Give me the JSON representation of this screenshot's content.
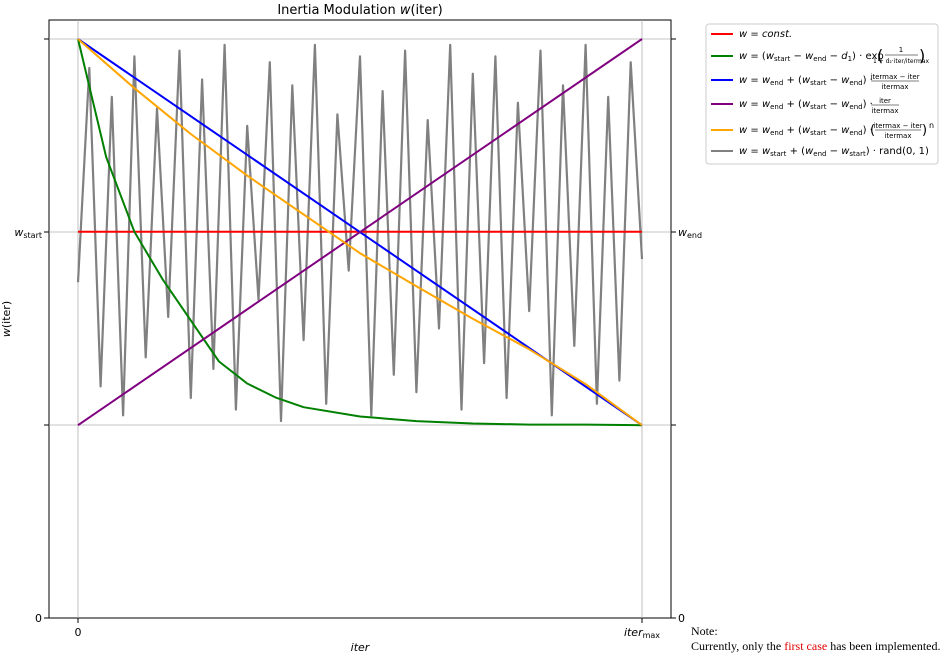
{
  "chart_data": {
    "type": "line",
    "title": "Inertia Modulation w(iter)",
    "xlabel": "iter",
    "ylabel": "w(iter)",
    "x_ticks": [
      "0",
      "iter_max"
    ],
    "y_ticks_left": [
      "0",
      "w_start"
    ],
    "y_ticks_right": [
      "0",
      "w_end"
    ],
    "xlim": [
      0,
      1
    ],
    "ylim": [
      0,
      1
    ],
    "grid": true,
    "legend_position": "outside-top-right",
    "series": [
      {
        "name": "w = const.",
        "color": "#ff0000",
        "x": [
          0,
          1
        ],
        "y": [
          0.667,
          0.667
        ]
      },
      {
        "name": "w = (w_start − w_end − d1) · exp(1 / (1 + d2·iter/itermax))",
        "color": "#008000",
        "x": [
          0,
          0.05,
          0.1,
          0.15,
          0.2,
          0.25,
          0.3,
          0.35,
          0.4,
          0.5,
          0.6,
          0.7,
          0.8,
          0.9,
          1.0
        ],
        "y": [
          1.0,
          0.796,
          0.667,
          0.585,
          0.514,
          0.443,
          0.405,
          0.381,
          0.364,
          0.348,
          0.34,
          0.336,
          0.334,
          0.334,
          0.333
        ]
      },
      {
        "name": "w = w_end + (w_start − w_end) · (itermax − iter)/itermax",
        "color": "#0000ff",
        "x": [
          0,
          1
        ],
        "y": [
          1.0,
          0.333
        ]
      },
      {
        "name": "w = w_end + (w_start − w_end) · iter/itermax",
        "color": "#800080",
        "x": [
          0,
          1
        ],
        "y": [
          0.333,
          1.0
        ]
      },
      {
        "name": "w = w_end + (w_start − w_end) · ((itermax − iter)/itermax)^n",
        "color": "#ffa500",
        "x": [
          0,
          0.1,
          0.2,
          0.3,
          0.4,
          0.5,
          0.6,
          0.7,
          0.8,
          0.9,
          1.0
        ],
        "y": [
          1.0,
          0.915,
          0.836,
          0.764,
          0.697,
          0.63,
          0.573,
          0.517,
          0.464,
          0.404,
          0.333
        ]
      },
      {
        "name": "w = w_start + (w_end − w_start) · rand(0, 1)",
        "color": "#808080",
        "x": [
          0,
          0.02,
          0.04,
          0.06,
          0.08,
          0.1,
          0.12,
          0.14,
          0.16,
          0.18,
          0.2,
          0.22,
          0.24,
          0.26,
          0.28,
          0.3,
          0.32,
          0.34,
          0.36,
          0.38,
          0.4,
          0.42,
          0.44,
          0.46,
          0.48,
          0.5,
          0.52,
          0.54,
          0.56,
          0.58,
          0.6,
          0.62,
          0.64,
          0.66,
          0.68,
          0.7,
          0.72,
          0.74,
          0.76,
          0.78,
          0.8,
          0.82,
          0.84,
          0.86,
          0.88,
          0.9,
          0.92,
          0.94,
          0.96,
          0.98,
          1.0
        ],
        "y": [
          0.58,
          0.95,
          0.4,
          0.9,
          0.35,
          0.97,
          0.45,
          0.88,
          0.52,
          0.98,
          0.38,
          0.93,
          0.43,
          0.99,
          0.36,
          0.85,
          0.55,
          0.96,
          0.34,
          0.92,
          0.48,
          0.99,
          0.37,
          0.87,
          0.6,
          0.97,
          0.35,
          0.91,
          0.42,
          0.98,
          0.39,
          0.86,
          0.5,
          0.99,
          0.36,
          0.94,
          0.44,
          0.97,
          0.38,
          0.89,
          0.53,
          0.98,
          0.35,
          0.92,
          0.47,
          0.99,
          0.37,
          0.9,
          0.41,
          0.96,
          0.62
        ]
      }
    ]
  },
  "note": {
    "line1": "Note:",
    "line2_before": "Currently, only the ",
    "line2_highlight": "first case",
    "line2_after": " has been implemented."
  }
}
